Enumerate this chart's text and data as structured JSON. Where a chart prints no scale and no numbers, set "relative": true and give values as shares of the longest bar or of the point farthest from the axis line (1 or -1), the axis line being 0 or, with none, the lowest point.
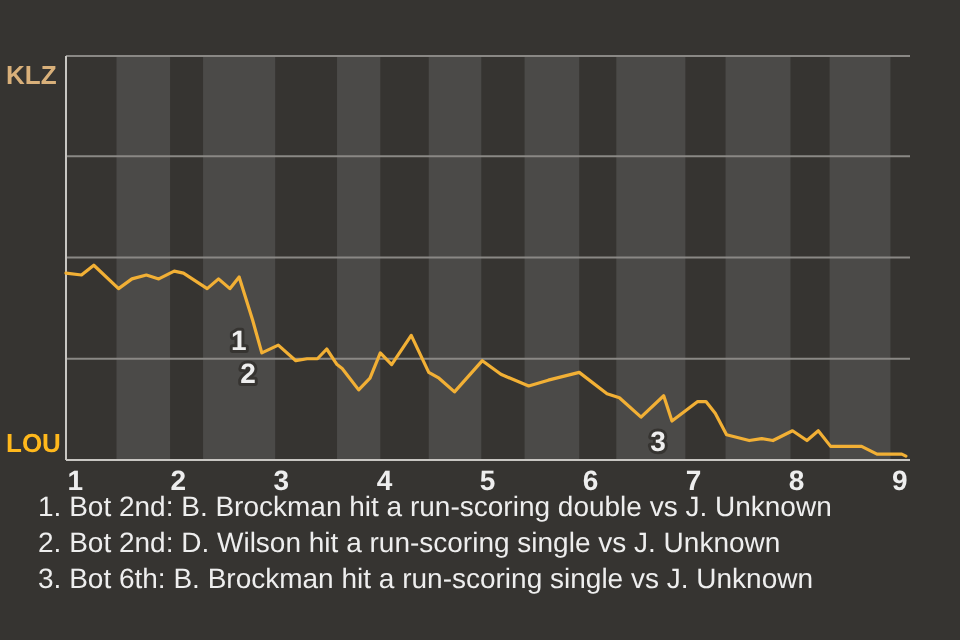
{
  "chart_data": {
    "type": "line",
    "relative": true,
    "xlim": [
      0.91,
      9.1
    ],
    "xticks": [
      1,
      2,
      3,
      4,
      5,
      6,
      7,
      8,
      9
    ],
    "marker": "none",
    "line_style": "solid",
    "ref_lines": [
      {
        "axis": "y",
        "value": 0.52,
        "color": "#8a8885"
      },
      {
        "axis": "y",
        "value": 1.04,
        "color": "#8a8885"
      },
      {
        "axis": "y",
        "value": 1.56,
        "color": "#8a8885"
      }
    ],
    "bands": [
      {
        "axis": "x",
        "from": 1.4,
        "to": 1.92,
        "color": "#4b4a48"
      },
      {
        "axis": "x",
        "from": 2.24,
        "to": 2.94,
        "color": "#4b4a48"
      },
      {
        "axis": "x",
        "from": 3.54,
        "to": 3.96,
        "color": "#4b4a48"
      },
      {
        "axis": "x",
        "from": 4.43,
        "to": 4.94,
        "color": "#4b4a48"
      },
      {
        "axis": "x",
        "from": 5.36,
        "to": 5.89,
        "color": "#4b4a48"
      },
      {
        "axis": "x",
        "from": 6.25,
        "to": 6.92,
        "color": "#4b4a48"
      },
      {
        "axis": "x",
        "from": 7.31,
        "to": 7.94,
        "color": "#4b4a48"
      },
      {
        "axis": "x",
        "from": 8.32,
        "to": 8.91,
        "color": "#4b4a48"
      }
    ],
    "series": [
      {
        "color": "#f2b035",
        "x": [
          0.91,
          1.06,
          1.18,
          1.42,
          1.55,
          1.69,
          1.81,
          1.96,
          2.05,
          2.28,
          2.39,
          2.5,
          2.59,
          2.72,
          2.81,
          2.97,
          3.14,
          3.25,
          3.35,
          3.44,
          3.54,
          3.59,
          3.75,
          3.86,
          3.96,
          4.07,
          4.26,
          4.43,
          4.53,
          4.68,
          4.95,
          5.13,
          5.4,
          5.59,
          5.89,
          6.16,
          6.28,
          6.49,
          6.71,
          6.79,
          7.04,
          7.12,
          7.21,
          7.32,
          7.54,
          7.66,
          7.77,
          7.96,
          8.1,
          8.21,
          8.33,
          8.63,
          8.78,
          9.02,
          9.06
        ],
        "values": [
          0.96,
          0.95,
          1,
          0.88,
          0.93,
          0.95,
          0.93,
          0.97,
          0.96,
          0.88,
          0.93,
          0.88,
          0.94,
          0.72,
          0.55,
          0.59,
          0.51,
          0.52,
          0.52,
          0.57,
          0.49,
          0.47,
          0.36,
          0.42,
          0.55,
          0.49,
          0.64,
          0.45,
          0.42,
          0.35,
          0.51,
          0.44,
          0.38,
          0.41,
          0.45,
          0.34,
          0.32,
          0.22,
          0.33,
          0.2,
          0.3,
          0.3,
          0.24,
          0.13,
          0.1,
          0.11,
          0.1,
          0.15,
          0.1,
          0.15,
          0.07,
          0.07,
          0.03,
          0.03,
          0.02
        ]
      }
    ],
    "annotations": [
      "KLZ",
      "LOU",
      {
        "text": "1",
        "x": 2.72,
        "y": 0.72
      },
      {
        "text": "2",
        "x": 2.81,
        "y": 0.55
      },
      {
        "text": "3",
        "x": 6.79,
        "y": 0.2
      },
      "1. Bot 2nd: B. Brockman hit a run-scoring double vs J. Unknown",
      "2. Bot 2nd: D. Wilson hit a run-scoring single vs J. Unknown",
      "3. Bot 6th: B. Brockman hit a run-scoring single vs J. Unknown"
    ]
  }
}
